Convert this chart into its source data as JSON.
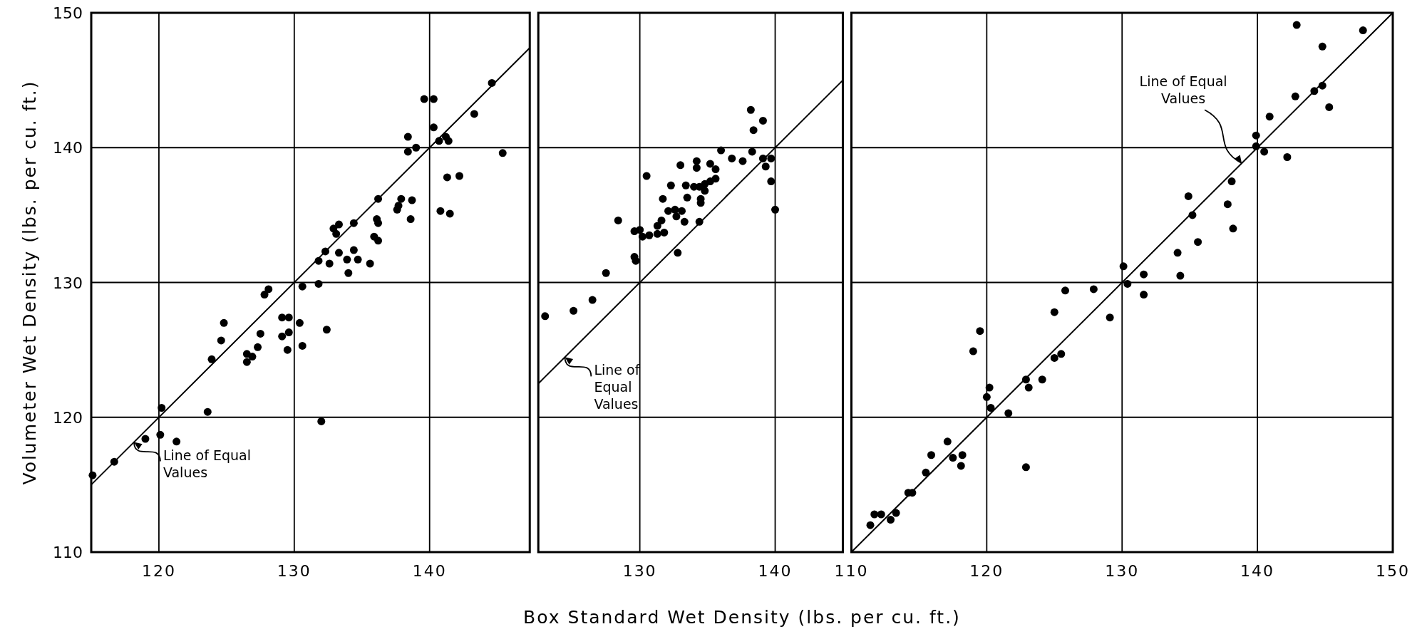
{
  "chart_data": [
    {
      "type": "scatter",
      "ylabel": "Volumeter Wet Density (lbs. per cu. ft.)",
      "xlim": [
        115,
        147.4
      ],
      "ylim": [
        110,
        150
      ],
      "xticks": [
        120,
        130,
        140
      ],
      "yticks": [
        110,
        120,
        130,
        140,
        150
      ],
      "grid": true,
      "series": [
        {
          "marker": "circle",
          "color": "#000000",
          "x": [
            139.6,
            140.3,
            144.6,
            143.3,
            140.3,
            138.4,
            139.0,
            138.4,
            140.7,
            141.2,
            141.4,
            145.4,
            141.3,
            142.2,
            136.2,
            137.9,
            138.7,
            137.7,
            137.6,
            140.8,
            141.5,
            138.6,
            136.1,
            136.2,
            133.3,
            132.9,
            133.1,
            134.4,
            135.9,
            136.2,
            132.3,
            133.3,
            134.4,
            133.9,
            134.7,
            135.6,
            131.8,
            132.6,
            134.0,
            130.6,
            131.8,
            128.1,
            127.8,
            124.8,
            124.6,
            123.9,
            129.1,
            129.6,
            130.4,
            127.5,
            129.1,
            129.6,
            132.4,
            127.3,
            126.5,
            126.9,
            126.5,
            129.5,
            130.6,
            120.2,
            123.6,
            132.0,
            119.0,
            120.1,
            121.3,
            116.7,
            115.1
          ],
          "values": [
            143.6,
            143.6,
            144.8,
            142.5,
            141.5,
            140.8,
            140.0,
            139.7,
            140.5,
            140.8,
            140.5,
            139.6,
            137.8,
            137.9,
            136.2,
            136.2,
            136.1,
            135.7,
            135.4,
            135.3,
            135.1,
            134.7,
            134.7,
            134.4,
            134.3,
            134.0,
            133.6,
            134.4,
            133.4,
            133.1,
            132.3,
            132.2,
            132.4,
            131.7,
            131.7,
            131.4,
            131.6,
            131.4,
            130.7,
            129.7,
            129.9,
            129.5,
            129.1,
            127.0,
            125.7,
            124.3,
            127.4,
            127.4,
            127.0,
            126.2,
            126.0,
            126.3,
            126.5,
            125.2,
            124.7,
            124.5,
            124.1,
            125.0,
            125.3,
            120.7,
            120.4,
            119.7,
            118.4,
            118.7,
            118.2,
            116.7,
            115.7
          ]
        },
        {
          "type": "line",
          "color": "#000000",
          "x": [
            115,
            147.4
          ],
          "values": [
            115,
            147.4
          ]
        }
      ],
      "annotations": [
        {
          "text": "Line of Equal\nValues",
          "x": 118,
          "y": 118
        }
      ]
    },
    {
      "type": "scatter",
      "xlabel": "Box Standard Wet Density (lbs. per cu. ft.)",
      "xlim": [
        122.5,
        145
      ],
      "ylim": [
        110,
        150
      ],
      "xticks": [
        130,
        140
      ],
      "yticks": [
        110,
        120,
        130,
        140,
        150
      ],
      "grid": true,
      "tick_labels": "x",
      "series": [
        {
          "marker": "circle",
          "color": "#000000",
          "x": [
            138.2,
            139.1,
            138.4,
            136.0,
            136.8,
            138.3,
            137.6,
            139.1,
            139.7,
            139.3,
            139.7,
            140.0,
            134.2,
            134.2,
            133.0,
            135.2,
            135.6,
            130.5,
            132.3,
            133.4,
            134.0,
            134.4,
            134.8,
            135.2,
            135.6,
            134.8,
            131.7,
            133.5,
            134.5,
            134.5,
            132.1,
            132.6,
            133.1,
            132.7,
            133.3,
            134.4,
            131.6,
            131.3,
            128.4,
            129.6,
            130.0,
            130.2,
            130.7,
            131.3,
            131.8,
            129.6,
            129.7,
            132.8,
            127.5,
            126.5,
            125.1,
            123.0
          ],
          "values": [
            142.8,
            142.0,
            141.3,
            139.8,
            139.2,
            139.7,
            139.0,
            139.2,
            139.2,
            138.6,
            137.5,
            135.4,
            139.0,
            138.5,
            138.7,
            138.8,
            138.4,
            137.9,
            137.2,
            137.2,
            137.1,
            137.1,
            137.3,
            137.5,
            137.7,
            136.8,
            136.2,
            136.3,
            136.2,
            135.9,
            135.3,
            135.4,
            135.3,
            134.9,
            134.5,
            134.5,
            134.6,
            134.2,
            134.6,
            133.8,
            133.9,
            133.4,
            133.5,
            133.6,
            133.7,
            131.9,
            131.6,
            132.2,
            130.7,
            128.7,
            127.9,
            127.5
          ]
        },
        {
          "type": "line",
          "color": "#000000",
          "x": [
            122.5,
            145
          ],
          "values": [
            122.5,
            145
          ]
        }
      ],
      "annotations": [
        {
          "text": "Line of\nEqual\nValues",
          "x": 124.3,
          "y": 124.3
        }
      ]
    },
    {
      "type": "scatter",
      "xlim": [
        110,
        150
      ],
      "ylim": [
        110,
        150
      ],
      "xticks": [
        110,
        120,
        130,
        140,
        150
      ],
      "yticks": [
        110,
        120,
        130,
        140,
        150
      ],
      "grid": true,
      "tick_labels": "x",
      "series": [
        {
          "marker": "circle",
          "color": "#000000",
          "x": [
            142.9,
            147.8,
            144.8,
            142.8,
            144.2,
            144.8,
            145.3,
            140.9,
            139.9,
            139.9,
            140.5,
            142.2,
            138.1,
            134.9,
            135.2,
            137.8,
            138.2,
            135.6,
            134.1,
            134.3,
            130.1,
            131.6,
            130.4,
            131.6,
            125.8,
            127.9,
            125.0,
            129.1,
            119.5,
            119.0,
            125.0,
            125.5,
            122.9,
            123.1,
            124.1,
            120.2,
            120.0,
            120.3,
            121.6,
            122.9,
            117.1,
            115.9,
            117.5,
            118.2,
            118.1,
            115.5,
            114.2,
            114.5,
            113.3,
            111.7,
            112.2,
            112.9,
            111.4
          ],
          "values": [
            149.1,
            148.7,
            147.5,
            143.8,
            144.2,
            144.6,
            143.0,
            142.3,
            140.9,
            140.1,
            139.7,
            139.3,
            137.5,
            136.4,
            135.0,
            135.8,
            134.0,
            133.0,
            132.2,
            130.5,
            131.2,
            130.6,
            129.9,
            129.1,
            129.4,
            129.5,
            127.8,
            127.4,
            126.4,
            124.9,
            124.4,
            124.7,
            122.8,
            122.2,
            122.8,
            122.2,
            121.5,
            120.7,
            120.3,
            116.3,
            118.2,
            117.2,
            117.0,
            117.2,
            116.4,
            115.9,
            114.4,
            114.4,
            112.9,
            112.8,
            112.8,
            112.4,
            112.0
          ]
        },
        {
          "type": "line",
          "color": "#000000",
          "x": [
            110,
            150
          ],
          "values": [
            110,
            150
          ]
        }
      ],
      "annotations": [
        {
          "text": "Line of Equal\nValues",
          "x": 139,
          "y": 139
        }
      ]
    }
  ]
}
